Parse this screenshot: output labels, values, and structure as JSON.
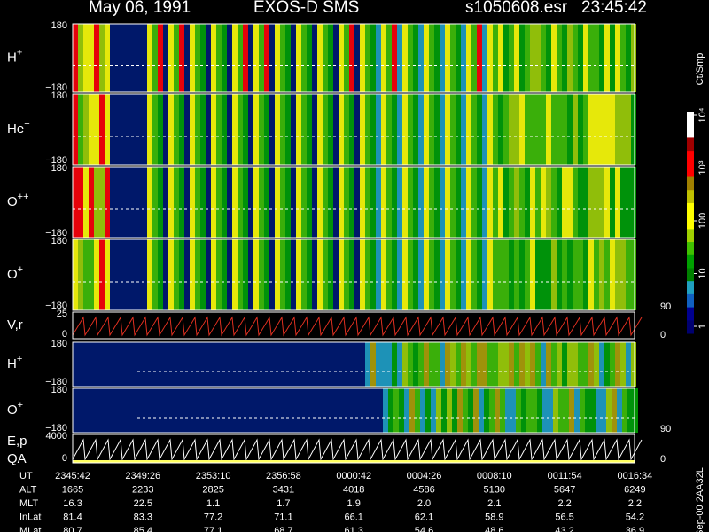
{
  "header": {
    "date": "May 06, 1991",
    "instrument": "EXOS-D SMS",
    "file": "s1050608.esr",
    "time": "23:45:42"
  },
  "panels": [
    {
      "label": "H",
      "sup": "+",
      "ytop": "180",
      "ybottom": "−180"
    },
    {
      "label": "He",
      "sup": "+",
      "ytop": "180",
      "ybottom": "−180"
    },
    {
      "label": "O",
      "sup": "++",
      "ytop": "180",
      "ybottom": "−180"
    },
    {
      "label": "O",
      "sup": "+",
      "ytop": "180",
      "ybottom": "−180",
      "right": "90"
    },
    {
      "label": "V,r",
      "ytop": "25",
      "ybottom": "0",
      "right": "0"
    },
    {
      "label": "H",
      "sup": "+",
      "ytop": "180",
      "ybottom": "−180"
    },
    {
      "label": "O",
      "sup": "+",
      "ytop": "180",
      "ybottom": "−180",
      "right": "90"
    },
    {
      "label": "E,p",
      "label2": "QA",
      "ytop": "4000",
      "ybottom": "0",
      "right": "0"
    }
  ],
  "colorbar": {
    "unit": "Ct/Smp",
    "ticks": [
      {
        "value": 10000,
        "label": "10⁴"
      },
      {
        "value": 1000,
        "label": "10³"
      },
      100,
      10,
      1
    ]
  },
  "side_note": "Sep-00 2AA32L",
  "footer": {
    "columns": [
      [
        "UT",
        "2345:42",
        "2349:26",
        "2353:10",
        "2356:58",
        "0000:42",
        "0004:26",
        "0008:10",
        "0011:54",
        "0016:34"
      ],
      [
        "ALT",
        "1665",
        "2233",
        "2825",
        "3431",
        "4018",
        "4586",
        "5130",
        "5647",
        "6249"
      ],
      [
        "MLT",
        "16.3",
        "22.5",
        "1.1",
        "1.7",
        "1.9",
        "2.0",
        "2.1",
        "2.2",
        "2.2"
      ],
      [
        "InLat",
        "81.4",
        "83.3",
        "77.2",
        "71.1",
        "66.1",
        "62.1",
        "58.9",
        "56.5",
        "54.2"
      ],
      [
        "MLat",
        "80.7",
        "85.4",
        "77.1",
        "68.7",
        "61.3",
        "54.6",
        "48.6",
        "43.2",
        "36.9"
      ]
    ]
  }
}
